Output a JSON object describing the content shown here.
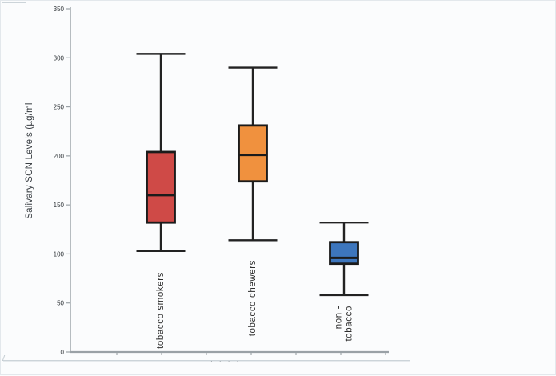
{
  "chart": {
    "y_axis_title": "Salivary SCN Levels (µg/ml",
    "footer_dots": "· · · ·"
  },
  "chart_data": {
    "type": "boxplot",
    "title": "",
    "xlabel": "",
    "ylabel": "Salivary SCN Levels (µg/ml)",
    "ylim": [
      0,
      350
    ],
    "yticks": [
      0,
      50,
      100,
      150,
      200,
      250,
      300,
      350
    ],
    "grid": false,
    "legend": false,
    "categories": [
      "tobacco smokers",
      "tobacco chewers",
      "non - tobacco"
    ],
    "series": [
      {
        "name": "tobacco smokers",
        "label_lines": [
          "tobacco smokers"
        ],
        "min": 103,
        "q1": 132,
        "median": 160,
        "q3": 204,
        "max": 304,
        "fill": "#cf4a47"
      },
      {
        "name": "tobacco chewers",
        "label_lines": [
          "tobacco chewers"
        ],
        "min": 114,
        "q1": 174,
        "median": 201,
        "q3": 231,
        "max": 290,
        "fill": "#f0913e"
      },
      {
        "name": "non - tobacco",
        "label_lines": [
          "non -",
          "tobacco"
        ],
        "min": 58,
        "q1": 90,
        "median": 96,
        "q3": 112,
        "max": 132,
        "fill": "#3d76bd"
      }
    ],
    "colors": {
      "box_border": "#1b1b1b",
      "whisker": "#222222",
      "axis": "#9aa1a6",
      "tick_label": "#2f3438",
      "category_label": "#2d2d2d"
    }
  }
}
